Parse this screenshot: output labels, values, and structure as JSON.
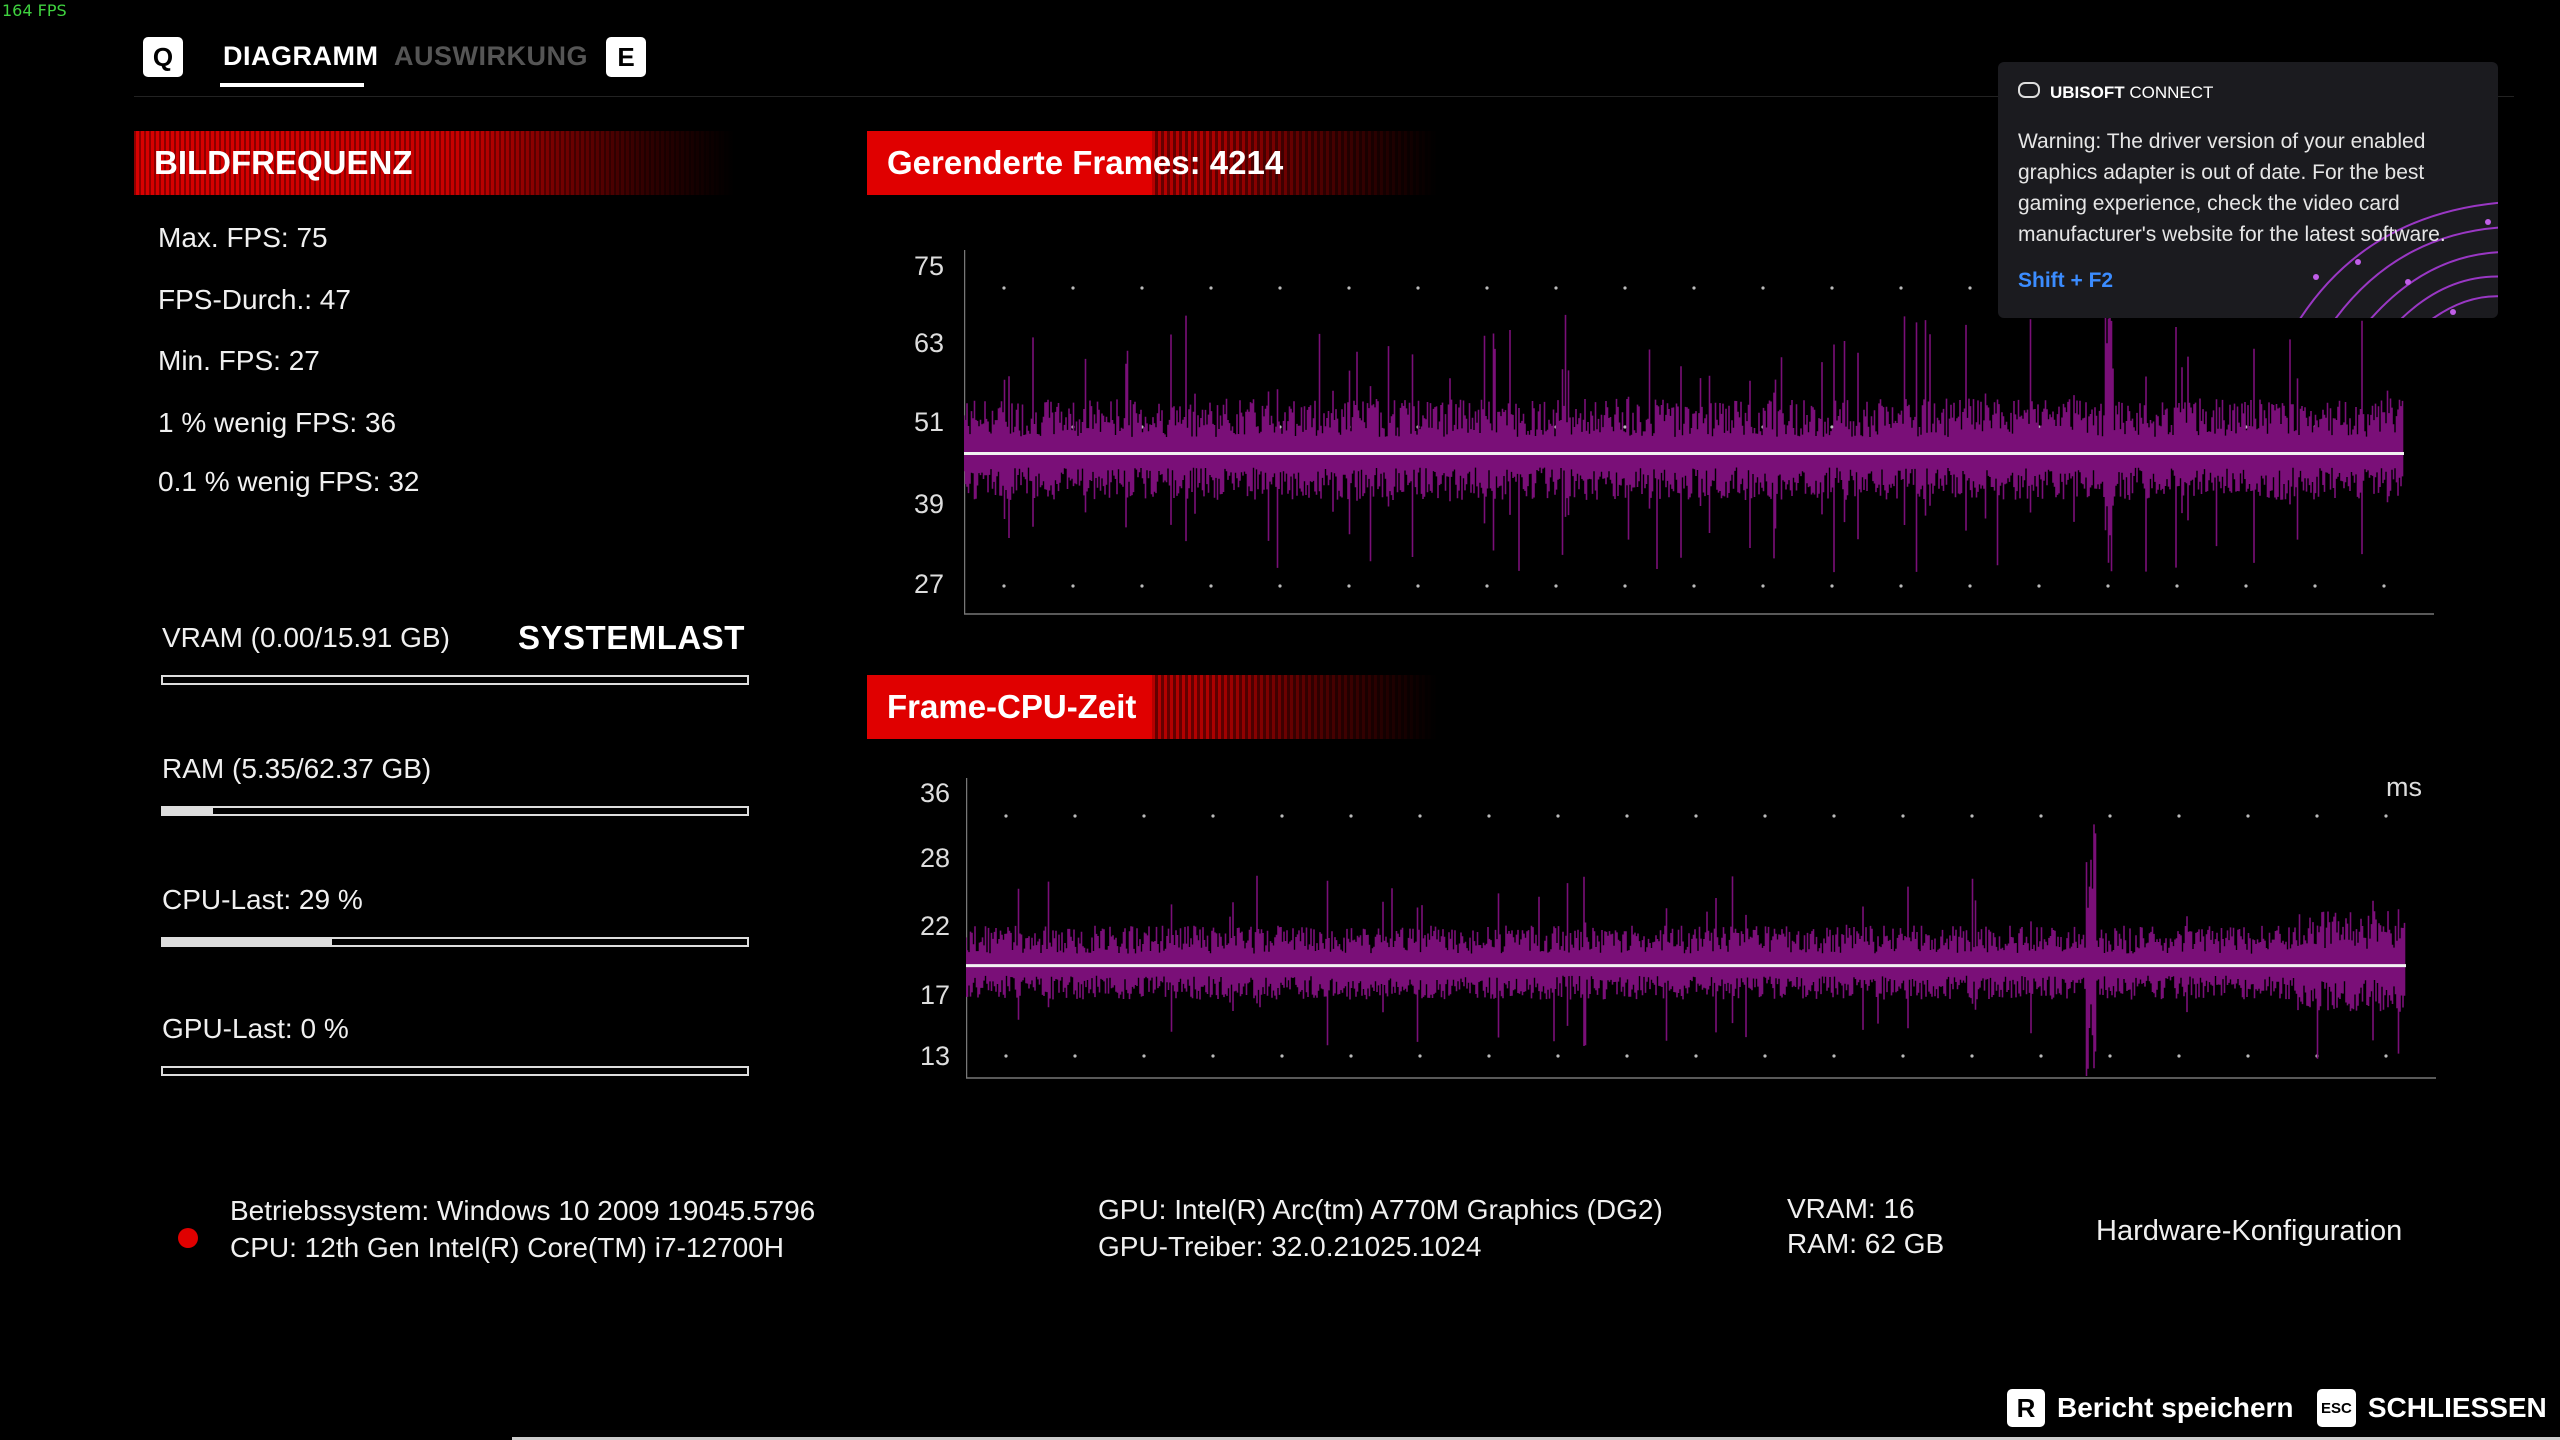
{
  "overlay": {
    "fps_counter": "164 FPS"
  },
  "tabs": {
    "prev_key": "Q",
    "next_key": "E",
    "items": [
      {
        "label": "DIAGRAMM",
        "active": true
      },
      {
        "label": "AUSWIRKUNG",
        "active": false
      }
    ]
  },
  "framerate": {
    "title": "BILDFREQUENZ",
    "stats": [
      "Max. FPS: 75",
      "FPS-Durch.: 47",
      "Min. FPS: 27",
      "1 % wenig FPS: 36",
      "0.1 % wenig FPS: 32"
    ]
  },
  "system_load": {
    "title": "SYSTEMLAST",
    "items": [
      {
        "label": "VRAM (0.00/15.91 GB)",
        "fraction": 0.0
      },
      {
        "label": "RAM (5.35/62.37 GB)",
        "fraction": 0.086
      },
      {
        "label": "CPU-Last: 29 %",
        "fraction": 0.29
      },
      {
        "label": "GPU-Last: 0 %",
        "fraction": 0.0
      }
    ]
  },
  "frames_chart": {
    "title": "Gerenderte Frames: 4214",
    "y_ticks": [
      "75",
      "63",
      "51",
      "39",
      "27"
    ],
    "ylim": [
      27,
      75
    ],
    "average": 47,
    "series_color": "#7a0f78"
  },
  "cpu_chart": {
    "title": "Frame-CPU-Zeit",
    "unit": "ms",
    "y_ticks": [
      "36",
      "28",
      "22",
      "17",
      "13"
    ],
    "ylim": [
      13,
      36
    ],
    "average": 21,
    "series_color": "#7a0f78"
  },
  "chart_data": [
    {
      "type": "area",
      "title": "Gerenderte Frames: 4214",
      "ylabel": "",
      "ylim": [
        27,
        75
      ],
      "y_ticks": [
        75,
        63,
        51,
        39,
        27
      ],
      "average_line": 47,
      "samples": 4214
    },
    {
      "type": "area",
      "title": "Frame-CPU-Zeit",
      "ylabel": "ms",
      "ylim": [
        13,
        36
      ],
      "y_ticks": [
        36,
        28,
        22,
        17,
        13
      ],
      "average_line": 21
    }
  ],
  "system_info": {
    "os": "Betriebssystem: Windows 10 2009 19045.5796",
    "cpu": "CPU: 12th Gen Intel(R) Core(TM) i7-12700H",
    "gpu": "GPU: Intel(R) Arc(tm) A770M Graphics (DG2)",
    "gpu_driver": "GPU-Treiber: 32.0.21025.1024",
    "vram": "VRAM: 16",
    "ram": "RAM: 62 GB",
    "hardware_config": "Hardware-Konfiguration",
    "status_color": "#e00000"
  },
  "notification": {
    "brand": "UBISOFT",
    "brand_suffix": "CONNECT",
    "message": "Warning: The driver version of your enabled graphics adapter is out of date. For the best gaming experience, check the video card manufacturer's website for the latest software.",
    "shortcut": "Shift + F2",
    "icon": "gamepad-icon"
  },
  "footer": {
    "save_key": "R",
    "save_label": "Bericht speichern",
    "close_key": "ESC",
    "close_label": "SCHLIESSEN"
  }
}
